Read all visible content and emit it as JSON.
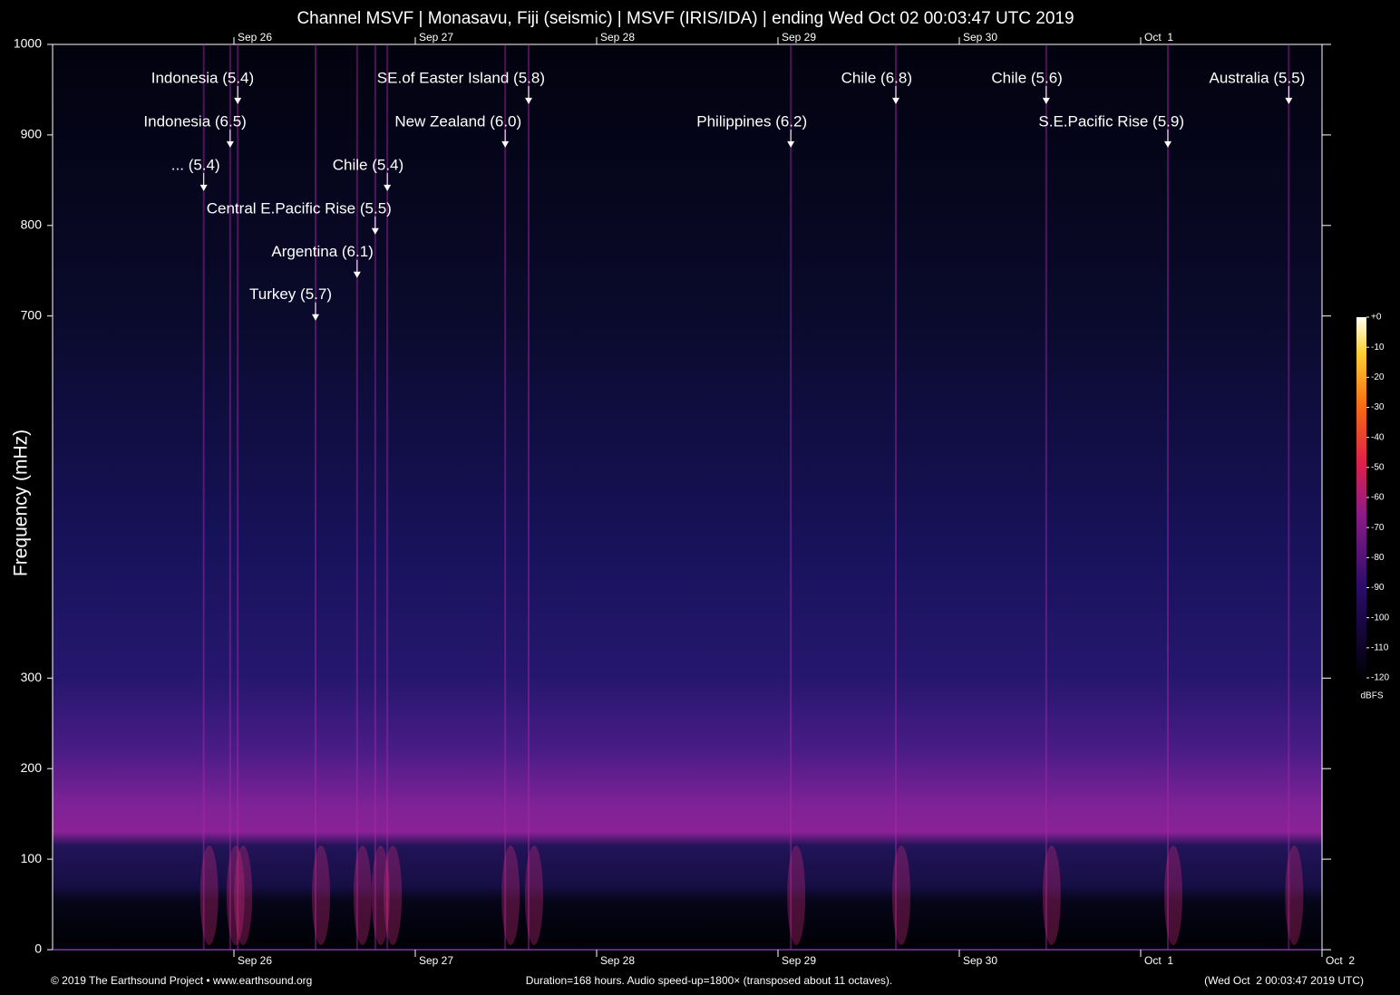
{
  "chart_data": {
    "type": "spectrogram",
    "title": "Channel MSVF | Monasavu, Fiji (seismic) | MSVF (IRIS/IDA) | ending Wed Oct 02 00:03:47 UTC 2019",
    "y_label": "Frequency (mHz)",
    "ylim": [
      0,
      1000
    ],
    "yticks": [
      0,
      100,
      200,
      300,
      700,
      800,
      900,
      1000
    ],
    "xlim": [
      0,
      168
    ],
    "xticks": [
      {
        "value": 24,
        "label": "Sep 26"
      },
      {
        "value": 48,
        "label": "Sep 27"
      },
      {
        "value": 72,
        "label": "Sep 28"
      },
      {
        "value": 96,
        "label": "Sep 29"
      },
      {
        "value": 120,
        "label": "Sep 30"
      },
      {
        "value": 144,
        "label": "Oct  1"
      },
      {
        "value": 168,
        "label": "Oct  2"
      }
    ],
    "top_xticks": [
      {
        "value": 24,
        "label": "Sep 26"
      },
      {
        "value": 48,
        "label": "Sep 27"
      },
      {
        "value": 72,
        "label": "Sep 28"
      },
      {
        "value": 96,
        "label": "Sep 29"
      },
      {
        "value": 120,
        "label": "Sep 30"
      },
      {
        "value": 144,
        "label": "Oct  1"
      }
    ],
    "events": [
      {
        "label": "Indonesia (5.4)",
        "x": 24.5,
        "y": 934
      },
      {
        "label": "SE.of Easter Island (5.8)",
        "x": 63.0,
        "y": 934
      },
      {
        "label": "Chile (6.8)",
        "x": 111.6,
        "y": 934
      },
      {
        "label": "Chile (5.6)",
        "x": 131.5,
        "y": 934
      },
      {
        "label": "Australia (5.5)",
        "x": 163.6,
        "y": 934
      },
      {
        "label": "Indonesia (6.5)",
        "x": 23.5,
        "y": 886
      },
      {
        "label": "New Zealand (6.0)",
        "x": 59.9,
        "y": 886
      },
      {
        "label": "Philippines (6.2)",
        "x": 97.7,
        "y": 886
      },
      {
        "label": "S.E.Pacific Rise (5.9)",
        "x": 147.6,
        "y": 886
      },
      {
        "label": "... (5.4)",
        "x": 20.0,
        "y": 838
      },
      {
        "label": "Chile (5.4)",
        "x": 44.3,
        "y": 838
      },
      {
        "label": "Central E.Pacific Rise (5.5)",
        "x": 42.7,
        "y": 790
      },
      {
        "label": "Argentina (6.1)",
        "x": 40.3,
        "y": 742
      },
      {
        "label": "Turkey (5.7)",
        "x": 34.8,
        "y": 695
      }
    ],
    "colorbar": {
      "label": "dBFS",
      "lim": [
        -120,
        0
      ],
      "ticks": [
        {
          "value": 0,
          "label": "+0"
        },
        -10,
        -20,
        -30,
        -40,
        -50,
        -60,
        -70,
        -80,
        -90,
        -100,
        -110,
        -120
      ]
    },
    "footer_left": "© 2019 The Earthsound Project • www.earthsound.org",
    "footer_center": "Duration=168 hours. Audio speed-up=1800× (transposed about 11 octaves).",
    "footer_right": "(Wed Oct  2 00:03:47 2019 UTC)"
  }
}
